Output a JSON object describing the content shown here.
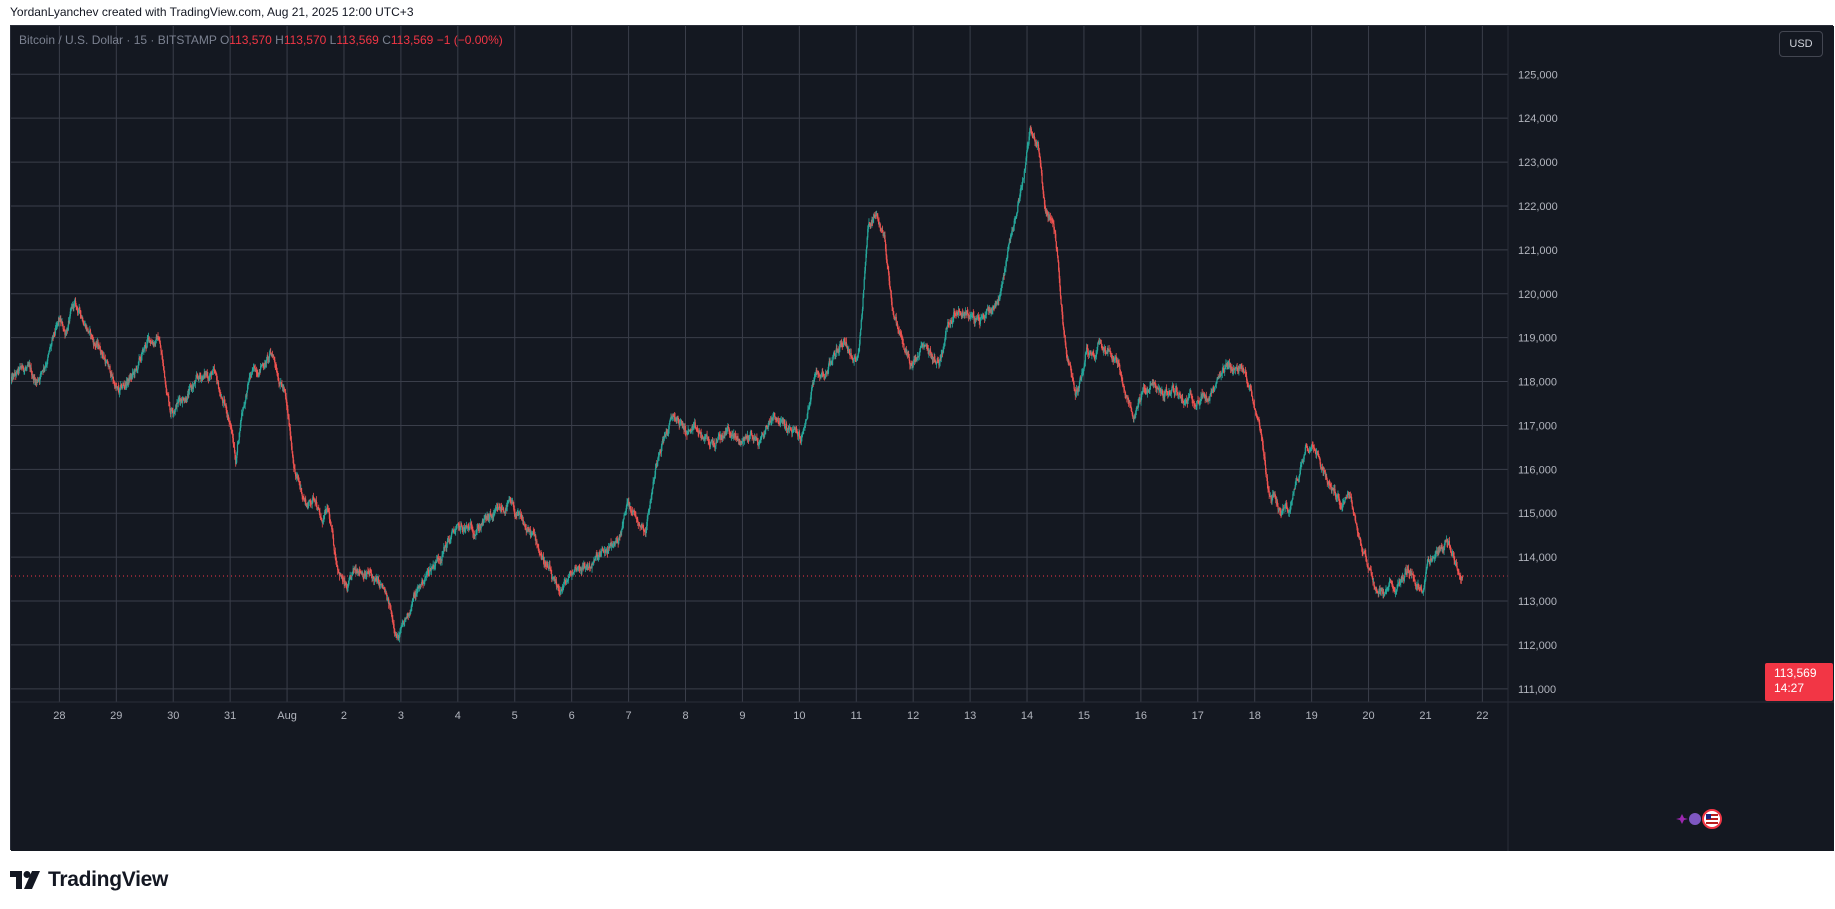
{
  "header": {
    "caption": "YordanLyanchev created with TradingView.com, Aug 21, 2025 12:00 UTC+3"
  },
  "legend": {
    "symbol": "Bitcoin / U.S. Dollar · 15 · BITSTAMP",
    "o_label": "O",
    "o_value": "113,570",
    "h_label": "H",
    "h_value": "113,570",
    "l_label": "L",
    "l_value": "113,569",
    "c_label": "C",
    "c_value": "113,569",
    "change": "−1 (−0.00%)"
  },
  "currency_button": "USD",
  "last_price": {
    "price": "113,569",
    "countdown": "14:27"
  },
  "brand": {
    "name": "TradingView"
  },
  "colors": {
    "background": "#141821",
    "grid": "#3a3e4a",
    "up": "#26a69a",
    "down": "#ef5350",
    "price_line": "#f23645",
    "axis_text": "#b2b5be"
  },
  "chart_data": {
    "type": "candlestick",
    "title": "Bitcoin / U.S. Dollar · 15 · BITSTAMP",
    "timeframe": "15",
    "y_axis_labels": [
      "111,000",
      "112,000",
      "113,000",
      "114,000",
      "115,000",
      "116,000",
      "117,000",
      "118,000",
      "119,000",
      "120,000",
      "121,000",
      "122,000",
      "123,000",
      "124,000",
      "125,000"
    ],
    "ylim": [
      110700,
      126100
    ],
    "x_axis_labels": [
      "28",
      "29",
      "30",
      "31",
      "Aug",
      "2",
      "3",
      "4",
      "5",
      "6",
      "7",
      "8",
      "9",
      "10",
      "11",
      "12",
      "13",
      "14",
      "15",
      "16",
      "17",
      "18",
      "19",
      "20",
      "21",
      "22"
    ],
    "x_axis_day_index": [
      0,
      1,
      2,
      3,
      4,
      5,
      6,
      7,
      8,
      9,
      10,
      11,
      12,
      13,
      14,
      15,
      16,
      17,
      18,
      19,
      20,
      21,
      22,
      23,
      24,
      25
    ],
    "xlim_days": [
      -0.85,
      25.45
    ],
    "series": [
      {
        "name": "BTCUSD",
        "points": [
          [
            -0.85,
            118000
          ],
          [
            -0.6,
            118300
          ],
          [
            -0.4,
            118000
          ],
          [
            -0.2,
            118600
          ],
          [
            0.0,
            119300
          ],
          [
            0.1,
            119100
          ],
          [
            0.25,
            119700
          ],
          [
            0.45,
            119400
          ],
          [
            0.6,
            118900
          ],
          [
            0.75,
            118700
          ],
          [
            0.95,
            118000
          ],
          [
            1.05,
            117700
          ],
          [
            1.2,
            118000
          ],
          [
            1.35,
            118200
          ],
          [
            1.55,
            118900
          ],
          [
            1.75,
            119000
          ],
          [
            1.85,
            118100
          ],
          [
            1.95,
            117400
          ],
          [
            2.1,
            117600
          ],
          [
            2.3,
            117800
          ],
          [
            2.5,
            118100
          ],
          [
            2.7,
            118200
          ],
          [
            2.85,
            117600
          ],
          [
            3.0,
            117100
          ],
          [
            3.1,
            116200
          ],
          [
            3.2,
            117300
          ],
          [
            3.35,
            118100
          ],
          [
            3.55,
            118400
          ],
          [
            3.75,
            118600
          ],
          [
            3.85,
            118200
          ],
          [
            3.95,
            117800
          ],
          [
            4.05,
            116800
          ],
          [
            4.15,
            115900
          ],
          [
            4.25,
            115500
          ],
          [
            4.35,
            115200
          ],
          [
            4.5,
            115400
          ],
          [
            4.6,
            114800
          ],
          [
            4.72,
            115000
          ],
          [
            4.85,
            114000
          ],
          [
            5.05,
            113200
          ],
          [
            5.25,
            113800
          ],
          [
            5.45,
            113600
          ],
          [
            5.7,
            113200
          ],
          [
            5.85,
            112600
          ],
          [
            5.95,
            112200
          ],
          [
            6.05,
            112400
          ],
          [
            6.2,
            113000
          ],
          [
            6.45,
            113600
          ],
          [
            6.7,
            114100
          ],
          [
            6.95,
            114600
          ],
          [
            7.2,
            114600
          ],
          [
            7.45,
            114800
          ],
          [
            7.65,
            114900
          ],
          [
            7.9,
            115200
          ],
          [
            8.15,
            114700
          ],
          [
            8.35,
            114400
          ],
          [
            8.6,
            113700
          ],
          [
            8.75,
            113100
          ],
          [
            8.9,
            113400
          ],
          [
            9.1,
            113800
          ],
          [
            9.3,
            113800
          ],
          [
            9.5,
            114000
          ],
          [
            9.7,
            114200
          ],
          [
            9.85,
            114500
          ],
          [
            10.0,
            115300
          ],
          [
            10.15,
            114900
          ],
          [
            10.3,
            114700
          ],
          [
            10.55,
            116600
          ],
          [
            10.8,
            117200
          ],
          [
            11.0,
            116900
          ],
          [
            11.2,
            116800
          ],
          [
            11.4,
            116600
          ],
          [
            11.55,
            116600
          ],
          [
            11.75,
            116900
          ],
          [
            11.95,
            116600
          ],
          [
            12.15,
            116800
          ],
          [
            12.3,
            116600
          ],
          [
            12.55,
            117300
          ],
          [
            12.8,
            116900
          ],
          [
            13.05,
            116700
          ],
          [
            13.25,
            118000
          ],
          [
            13.45,
            118200
          ],
          [
            13.65,
            118700
          ],
          [
            13.8,
            119000
          ],
          [
            13.95,
            118400
          ],
          [
            14.05,
            118800
          ],
          [
            14.2,
            121500
          ],
          [
            14.35,
            121900
          ],
          [
            14.5,
            121200
          ],
          [
            14.65,
            119600
          ],
          [
            14.85,
            118700
          ],
          [
            15.0,
            118300
          ],
          [
            15.15,
            118700
          ],
          [
            15.3,
            118600
          ],
          [
            15.45,
            118400
          ],
          [
            15.6,
            119300
          ],
          [
            15.75,
            119700
          ],
          [
            15.95,
            119600
          ],
          [
            16.15,
            119300
          ],
          [
            16.3,
            119600
          ],
          [
            16.5,
            119900
          ],
          [
            16.7,
            121200
          ],
          [
            16.8,
            121800
          ],
          [
            16.95,
            122800
          ],
          [
            17.05,
            123700
          ],
          [
            17.2,
            123400
          ],
          [
            17.3,
            122000
          ],
          [
            17.45,
            121600
          ],
          [
            17.55,
            120800
          ],
          [
            17.65,
            119100
          ],
          [
            17.75,
            118300
          ],
          [
            17.85,
            117600
          ],
          [
            17.95,
            118100
          ],
          [
            18.05,
            118800
          ],
          [
            18.15,
            118600
          ],
          [
            18.3,
            119000
          ],
          [
            18.45,
            118800
          ],
          [
            18.6,
            118500
          ],
          [
            18.7,
            117700
          ],
          [
            18.85,
            117200
          ],
          [
            19.05,
            117800
          ],
          [
            19.2,
            117900
          ],
          [
            19.4,
            117700
          ],
          [
            19.6,
            117800
          ],
          [
            19.8,
            117600
          ],
          [
            20.0,
            117700
          ],
          [
            20.2,
            117600
          ],
          [
            20.35,
            117900
          ],
          [
            20.5,
            118200
          ],
          [
            20.65,
            118300
          ],
          [
            20.8,
            118200
          ],
          [
            20.95,
            117800
          ],
          [
            21.05,
            117200
          ],
          [
            21.15,
            116400
          ],
          [
            21.25,
            115500
          ],
          [
            21.35,
            115400
          ],
          [
            21.45,
            115000
          ],
          [
            21.6,
            115100
          ],
          [
            21.75,
            115700
          ],
          [
            21.9,
            116600
          ],
          [
            22.05,
            116700
          ],
          [
            22.2,
            116000
          ],
          [
            22.35,
            115600
          ],
          [
            22.5,
            115300
          ],
          [
            22.65,
            115600
          ],
          [
            22.8,
            114700
          ],
          [
            22.95,
            114000
          ],
          [
            23.1,
            113400
          ],
          [
            23.25,
            113100
          ],
          [
            23.45,
            113400
          ],
          [
            23.7,
            113700
          ],
          [
            23.85,
            113400
          ],
          [
            23.95,
            113300
          ],
          [
            24.05,
            113900
          ],
          [
            24.2,
            114200
          ],
          [
            24.35,
            114400
          ],
          [
            24.5,
            114000
          ],
          [
            24.6,
            113600
          ],
          [
            24.65,
            113569
          ]
        ]
      }
    ],
    "last_price": 113569,
    "last_price_countdown": "14:27",
    "grid": true
  }
}
